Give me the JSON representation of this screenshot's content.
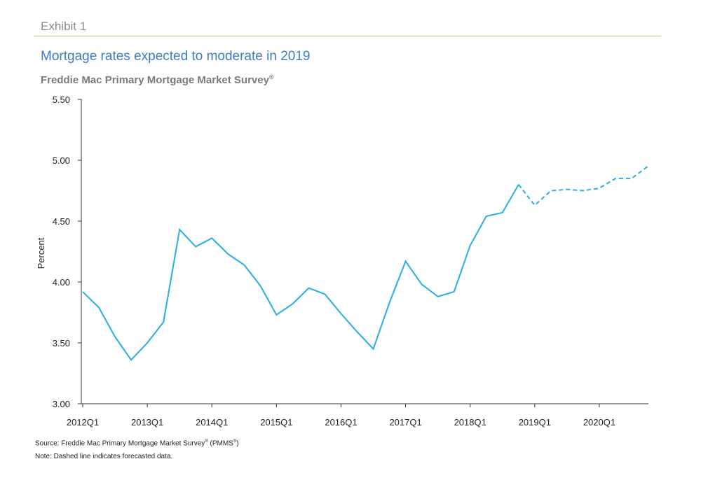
{
  "header": {
    "exhibit": "Exhibit 1",
    "title": "Mortgage rates expected to moderate in 2019",
    "subtitle": "Freddie Mac Primary Mortgage Market Survey",
    "subtitle_mark": "®"
  },
  "footer": {
    "source": "Source: Freddie Mac Primary Mortgage Market Survey",
    "source_mark": "®",
    "source_suffix": " (PMMS",
    "source_suffix_mark": "®",
    "source_close": ")",
    "note": "Note: Dashed line indicates forecasted data."
  },
  "chart_data": {
    "type": "line",
    "ylabel": "Percent",
    "xlabel": "",
    "ylim": [
      3.0,
      5.5
    ],
    "y_ticks": [
      "3.00",
      "3.50",
      "4.00",
      "4.50",
      "5.00",
      "5.50"
    ],
    "x_tick_labels": [
      "2012Q1",
      "2013Q1",
      "2014Q1",
      "2015Q1",
      "2016Q1",
      "2017Q1",
      "2018Q1",
      "2019Q1",
      "2020Q1"
    ],
    "x": [
      "2012Q1",
      "2012Q2",
      "2012Q3",
      "2012Q4",
      "2013Q1",
      "2013Q2",
      "2013Q3",
      "2013Q4",
      "2014Q1",
      "2014Q2",
      "2014Q3",
      "2014Q4",
      "2015Q1",
      "2015Q2",
      "2015Q3",
      "2015Q4",
      "2016Q1",
      "2016Q2",
      "2016Q3",
      "2016Q4",
      "2017Q1",
      "2017Q2",
      "2017Q3",
      "2017Q4",
      "2018Q1",
      "2018Q2",
      "2018Q3",
      "2018Q4",
      "2019Q1",
      "2019Q2",
      "2019Q3",
      "2019Q4",
      "2020Q1",
      "2020Q2",
      "2020Q3",
      "2020Q4"
    ],
    "series": [
      {
        "color": "#27aee3",
        "style": "solid",
        "values": [
          3.92,
          3.79,
          3.55,
          3.36,
          3.5,
          3.67,
          4.43,
          4.29,
          4.36,
          4.23,
          4.14,
          3.97,
          3.73,
          3.82,
          3.95,
          3.9,
          3.74,
          3.59,
          3.45,
          3.83,
          4.17,
          3.98,
          3.88,
          3.92,
          4.3,
          4.54,
          4.57,
          4.8,
          null,
          null,
          null,
          null,
          null,
          null,
          null,
          null
        ]
      },
      {
        "color": "#27aee3",
        "style": "dashed",
        "values": [
          null,
          null,
          null,
          null,
          null,
          null,
          null,
          null,
          null,
          null,
          null,
          null,
          null,
          null,
          null,
          null,
          null,
          null,
          null,
          null,
          null,
          null,
          null,
          null,
          null,
          null,
          null,
          4.8,
          4.63,
          4.75,
          4.76,
          4.75,
          4.77,
          4.85,
          4.85,
          4.95
        ]
      }
    ],
    "grid": false,
    "legend": "none"
  }
}
